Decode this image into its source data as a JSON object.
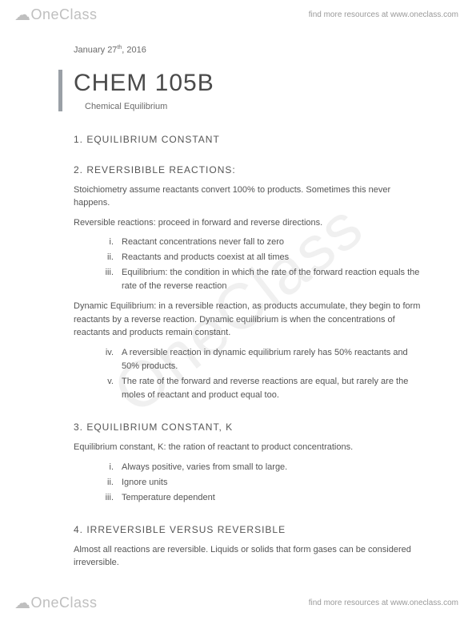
{
  "brand": "OneClass",
  "tagline": "find more resources at www.oneclass.com",
  "watermark": "OneClass",
  "date_prefix": "January 27",
  "date_suffix": "th",
  "date_year": ", 2016",
  "title": "CHEM 105B",
  "subtitle": "Chemical Equilibrium",
  "sections": {
    "s1": {
      "head": "1. EQUILIBRIUM CONSTANT"
    },
    "s2": {
      "head": "2. REVERSIBIBLE REACTIONS:",
      "p1": "Stoichiometry assume reactants convert 100% to products. Sometimes this never happens.",
      "p2": "Reversible reactions: proceed in forward and reverse directions.",
      "list1": {
        "i": "Reactant concentrations never fall to zero",
        "ii": "Reactants and products coexist at all times",
        "iii": "Equilibrium: the condition in which the rate of the forward reaction equals the rate of the reverse reaction"
      },
      "p3": "Dynamic Equilibrium: in a reversible reaction, as products accumulate, they begin to form reactants by a reverse reaction. Dynamic equilibrium is when the concentrations of reactants and products remain constant.",
      "list2": {
        "iv": "A reversible reaction in dynamic equilibrium rarely has 50% reactants and 50% products.",
        "v": "The rate of the forward and reverse reactions are equal, but rarely are the moles of reactant and product equal too."
      }
    },
    "s3": {
      "head": "3. EQUILIBRIUM CONSTANT, K",
      "p1": "Equilibrium constant, K: the ration of reactant to product concentrations.",
      "list": {
        "i": "Always positive, varies from small to large.",
        "ii": "Ignore units",
        "iii": "Temperature dependent"
      }
    },
    "s4": {
      "head": "4. IRREVERSIBLE VERSUS REVERSIBLE",
      "p1": "Almost all reactions are reversible. Liquids or solids that form gases can be considered irreversible."
    }
  }
}
